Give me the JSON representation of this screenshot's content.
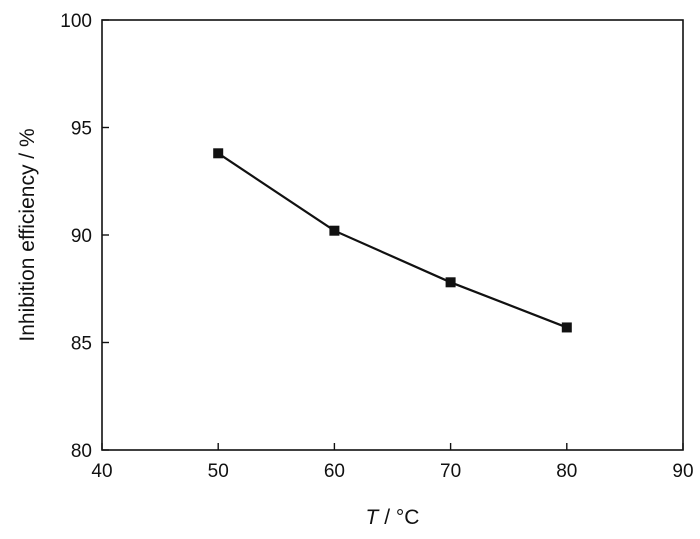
{
  "chart_data": {
    "type": "line",
    "title": "",
    "xlabel": {
      "var": "T",
      "unit": " / °C"
    },
    "ylabel": "Inhibition efficiency / %",
    "xlim": [
      40,
      90
    ],
    "ylim": [
      80,
      100
    ],
    "xticks": [
      40,
      50,
      60,
      70,
      80,
      90
    ],
    "yticks": [
      80,
      85,
      90,
      95,
      100
    ],
    "grid": false,
    "marker": "square",
    "series": [
      {
        "x": [
          50,
          60,
          70,
          80
        ],
        "y": [
          93.8,
          90.2,
          87.8,
          85.7
        ]
      }
    ],
    "colors": {
      "line": "#111111",
      "axis": "#111111",
      "background": "#ffffff"
    }
  }
}
